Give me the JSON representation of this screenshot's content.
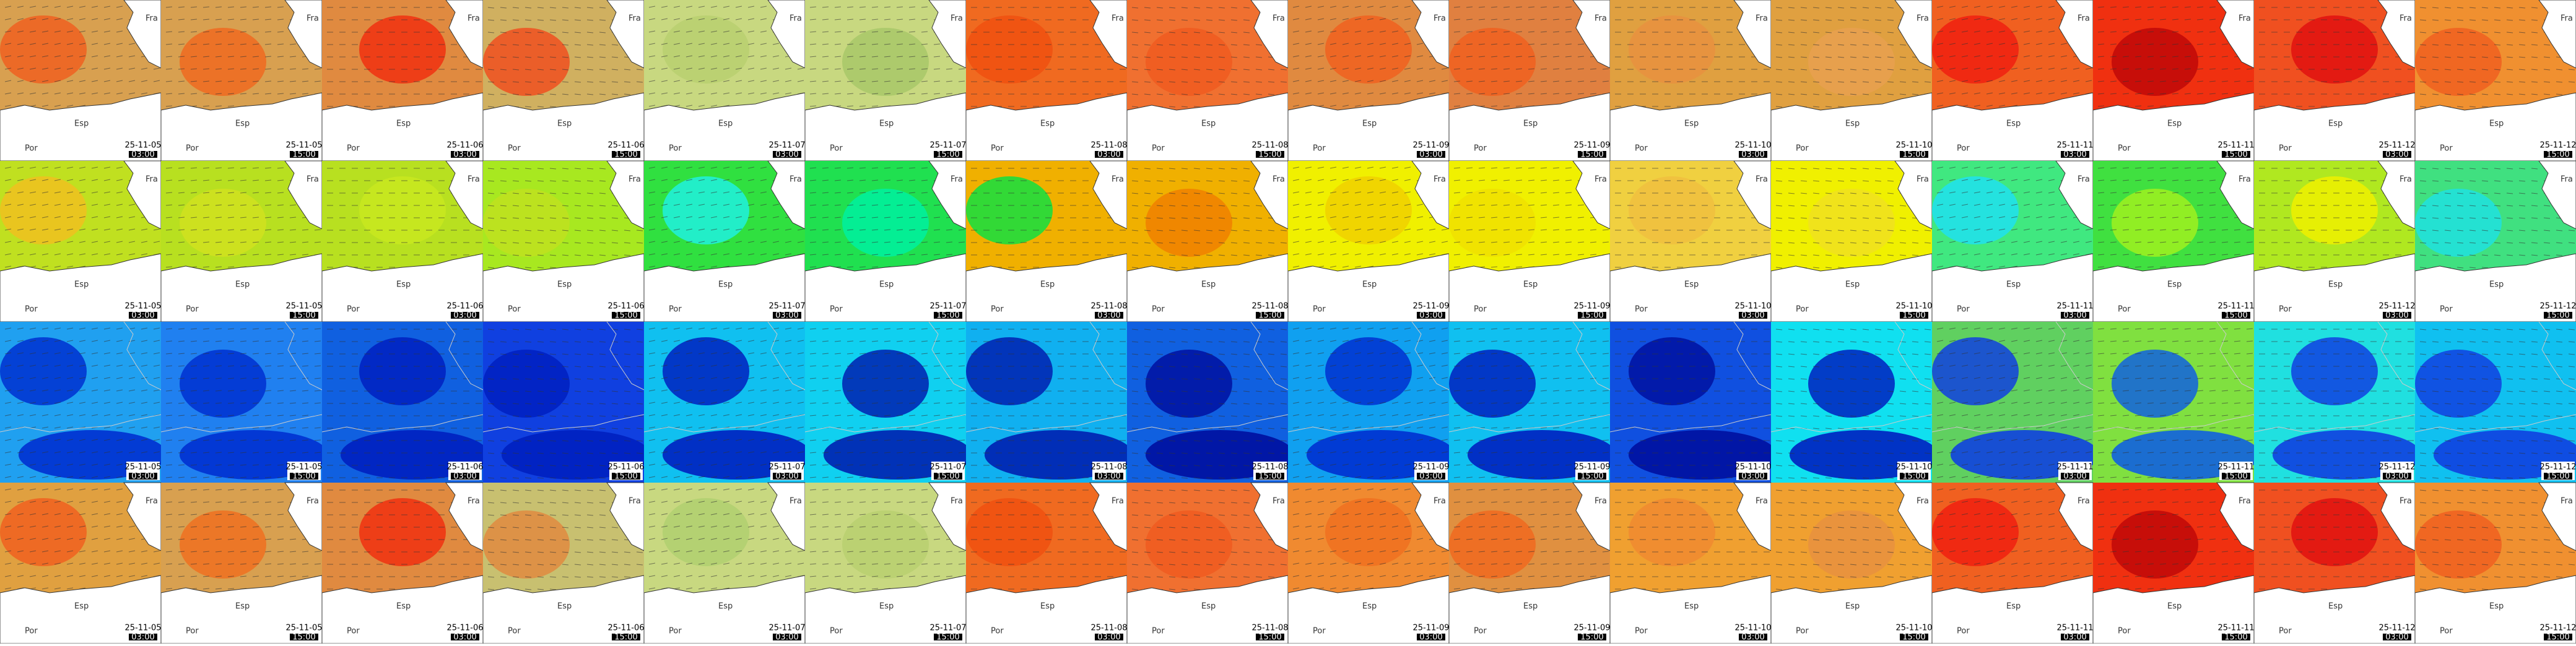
{
  "tiles": {
    "dates": [
      "25-11-05",
      "25-11-05",
      "25-11-06",
      "25-11-06",
      "25-11-07",
      "25-11-07",
      "25-11-08",
      "25-11-08",
      "25-11-09",
      "25-11-09",
      "25-11-10",
      "25-11-10",
      "25-11-11",
      "25-11-11",
      "25-11-12",
      "25-11-12"
    ],
    "times": [
      "03:00",
      "15:00",
      "03:00",
      "15:00",
      "03:00",
      "15:00",
      "03:00",
      "15:00",
      "03:00",
      "15:00",
      "03:00",
      "15:00",
      "03:00",
      "15:00",
      "03:00",
      "15:00"
    ]
  },
  "place_names": {
    "france": "Fra",
    "spain": "Esp",
    "portugal": "Por"
  },
  "rows": [
    {
      "land": true,
      "colors": [
        "#d8a050",
        "#d8a050",
        "#e08a40",
        "#d0b060",
        "#c8d880",
        "#c8d880",
        "#f06a20",
        "#f07030",
        "#e08a40",
        "#e08040",
        "#e0a040",
        "#e0a040",
        "#f06020",
        "#f03010",
        "#f05020",
        "#f09030"
      ],
      "accents": [
        "#f06020",
        "#f06a20",
        "#f03010",
        "#f05020",
        "#b8d070",
        "#a8c868",
        "#f05010",
        "#f05a20",
        "#f06020",
        "#f06020",
        "#e89040",
        "#e8a050",
        "#f02010",
        "#c00808",
        "#e01010",
        "#f06020"
      ]
    },
    {
      "land": true,
      "colors": [
        "#c0e020",
        "#b8e020",
        "#b8e020",
        "#a8e820",
        "#30e040",
        "#20e050",
        "#f0b000",
        "#f0b000",
        "#f0f000",
        "#f0f000",
        "#f0d040",
        "#f0f000",
        "#40e880",
        "#40e040",
        "#b0e820",
        "#40e080"
      ],
      "accents": [
        "#f0c020",
        "#d0e020",
        "#c8e820",
        "#c0e020",
        "#20f0e0",
        "#00f0a0",
        "#10e040",
        "#f08000",
        "#f0d000",
        "#f0e000",
        "#f0c040",
        "#f0e020",
        "#20e0f0",
        "#a0f020",
        "#f0f000",
        "#20e0e0"
      ]
    },
    {
      "land": false,
      "colors": [
        "#20a0f0",
        "#2080f0",
        "#1060e0",
        "#1040e0",
        "#10c0f0",
        "#10d0f0",
        "#10b0f0",
        "#1060e0",
        "#10a0f0",
        "#10c0f0",
        "#1050e0",
        "#10e0f0",
        "#60d060",
        "#80e040",
        "#20e0e0",
        "#10c0f0"
      ],
      "accents": [
        "#0030d0",
        "#0030d0",
        "#0020c0",
        "#0020c0",
        "#0020c0",
        "#0020b0",
        "#0020b0",
        "#0010a0",
        "#0030d0",
        "#0020c0",
        "#0010a0",
        "#0020c0",
        "#1040e0",
        "#1060e0",
        "#1040e0",
        "#1040e0"
      ]
    },
    {
      "land": true,
      "colors": [
        "#e0a040",
        "#d8a050",
        "#e08a40",
        "#c8c070",
        "#c8d880",
        "#c8d880",
        "#f06a20",
        "#f07030",
        "#f08a30",
        "#e09040",
        "#f0a030",
        "#f0a030",
        "#f06020",
        "#f03010",
        "#f05020",
        "#f09030"
      ],
      "accents": [
        "#f06020",
        "#f07020",
        "#f03010",
        "#e08a40",
        "#b0d070",
        "#b8d070",
        "#f05010",
        "#f05a20",
        "#f07020",
        "#f06a20",
        "#f08a30",
        "#e89040",
        "#f02010",
        "#c00808",
        "#e01010",
        "#f06020"
      ]
    }
  ]
}
